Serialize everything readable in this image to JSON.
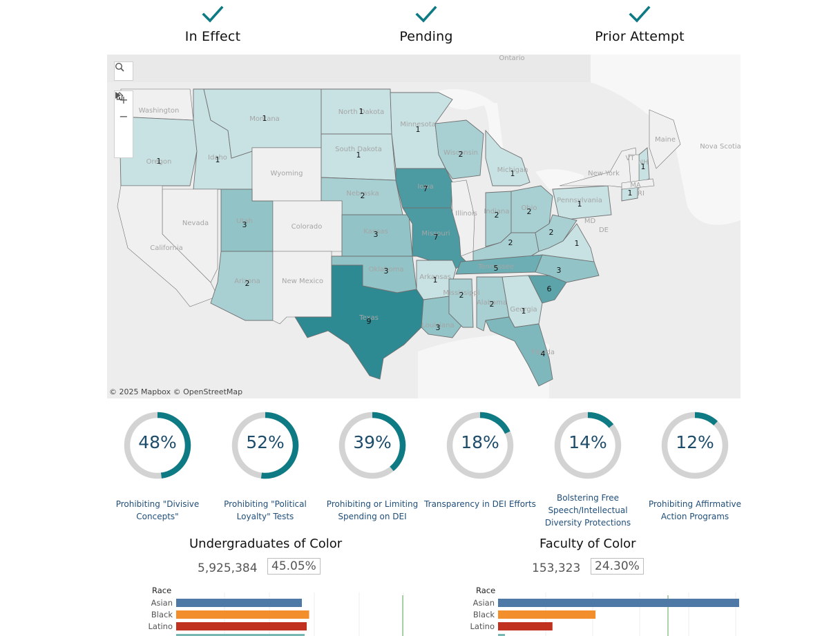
{
  "filters": [
    {
      "label": "In Effect",
      "checked": true
    },
    {
      "label": "Pending",
      "checked": true
    },
    {
      "label": "Prior Attempt",
      "checked": true
    }
  ],
  "map": {
    "tools": [
      "search-icon",
      "zoom-in-icon",
      "zoom-out-icon",
      "home-icon",
      "play-icon"
    ],
    "attribution": "© 2025 Mapbox  © OpenStreetMap",
    "base_labels": [
      "Washington",
      "Oregon",
      "Montana",
      "North Dakota",
      "South Dakota",
      "Minnesota",
      "Wisconsin",
      "Idaho",
      "Wyoming",
      "Nebraska",
      "Iowa",
      "Michigan",
      "Nevada",
      "Utah",
      "Colorado",
      "Illinois",
      "California",
      "Kansas",
      "Missouri",
      "Indiana",
      "Ohio",
      "Pennsylvania",
      "New York",
      "Ontario",
      "Maine",
      "Nova Scotia",
      "VT",
      "NH",
      "MA",
      "RI",
      "DE",
      "MD",
      "Arizona",
      "New Mexico",
      "Oklahoma",
      "Arkansas",
      "Tennessee",
      "Texas",
      "Louisiana",
      "Mississippi",
      "Alabama",
      "Georgia",
      "Florida"
    ],
    "state_counts": [
      {
        "state": "Oregon",
        "count": 1
      },
      {
        "state": "Idaho",
        "count": 1
      },
      {
        "state": "Montana",
        "count": 1
      },
      {
        "state": "North Dakota",
        "count": 1
      },
      {
        "state": "South Dakota",
        "count": 1
      },
      {
        "state": "Minnesota",
        "count": 1
      },
      {
        "state": "Wisconsin",
        "count": 2
      },
      {
        "state": "Michigan",
        "count": 1
      },
      {
        "state": "Nebraska",
        "count": 2
      },
      {
        "state": "Iowa",
        "count": 7
      },
      {
        "state": "Utah",
        "count": 3
      },
      {
        "state": "Kansas",
        "count": 3
      },
      {
        "state": "Missouri",
        "count": 7
      },
      {
        "state": "Indiana",
        "count": 2
      },
      {
        "state": "Ohio",
        "count": 2
      },
      {
        "state": "Pennsylvania",
        "count": 1
      },
      {
        "state": "New Hampshire",
        "count": 1
      },
      {
        "state": "Connecticut",
        "count": 1
      },
      {
        "state": "Kentucky",
        "count": 2
      },
      {
        "state": "West Virginia",
        "count": 2
      },
      {
        "state": "Virginia",
        "count": 1
      },
      {
        "state": "Tennessee",
        "count": 5
      },
      {
        "state": "North Carolina",
        "count": 3
      },
      {
        "state": "South Carolina",
        "count": 6
      },
      {
        "state": "Arizona",
        "count": 2
      },
      {
        "state": "Oklahoma",
        "count": 3
      },
      {
        "state": "Arkansas",
        "count": 1
      },
      {
        "state": "Texas",
        "count": 9
      },
      {
        "state": "Louisiana",
        "count": 3
      },
      {
        "state": "Mississippi",
        "count": 2
      },
      {
        "state": "Alabama",
        "count": 2
      },
      {
        "state": "Georgia",
        "count": 1
      },
      {
        "state": "Florida",
        "count": 4
      }
    ]
  },
  "gauges": [
    {
      "value": 48,
      "display": "48%",
      "caption": "Prohibiting \"Divisive Concepts\""
    },
    {
      "value": 52,
      "display": "52%",
      "caption": "Prohibiting \"Political Loyalty\" Tests"
    },
    {
      "value": 39,
      "display": "39%",
      "caption": "Prohibiting or Limiting Spending on DEI"
    },
    {
      "value": 18,
      "display": "18%",
      "caption": "Transparency in DEI Efforts"
    },
    {
      "value": 14,
      "display": "14%",
      "caption": "Bolstering Free Speech/Intellectual Diversity Protections"
    },
    {
      "value": 12,
      "display": "12%",
      "caption": "Prohibiting Affirmative Action Programs"
    }
  ],
  "colors": {
    "accent": "#0e7a83",
    "gauge_track": "#d3d3d3",
    "gauge_text": "#1d4c6b",
    "asian": "#4e79a7",
    "black": "#f28e2b",
    "latino": "#c0321f",
    "fourth": "#76b7b2",
    "ref_line": "#8fc48f"
  },
  "undergrad": {
    "title": "Undergraduates of Color",
    "total": "5,925,384",
    "percent": "45.05%",
    "header": "Race",
    "rows": [
      {
        "race": "Asian",
        "share": 0.52
      },
      {
        "race": "Black",
        "share": 0.55
      },
      {
        "race": "Latino",
        "share": 0.54
      }
    ]
  },
  "faculty": {
    "title": "Faculty of Color",
    "total": "153,323",
    "percent": "24.30%",
    "header": "Race",
    "rows": [
      {
        "race": "Asian",
        "share": 0.92
      },
      {
        "race": "Black",
        "share": 0.34
      },
      {
        "race": "Latino",
        "share": 0.19
      }
    ]
  }
}
